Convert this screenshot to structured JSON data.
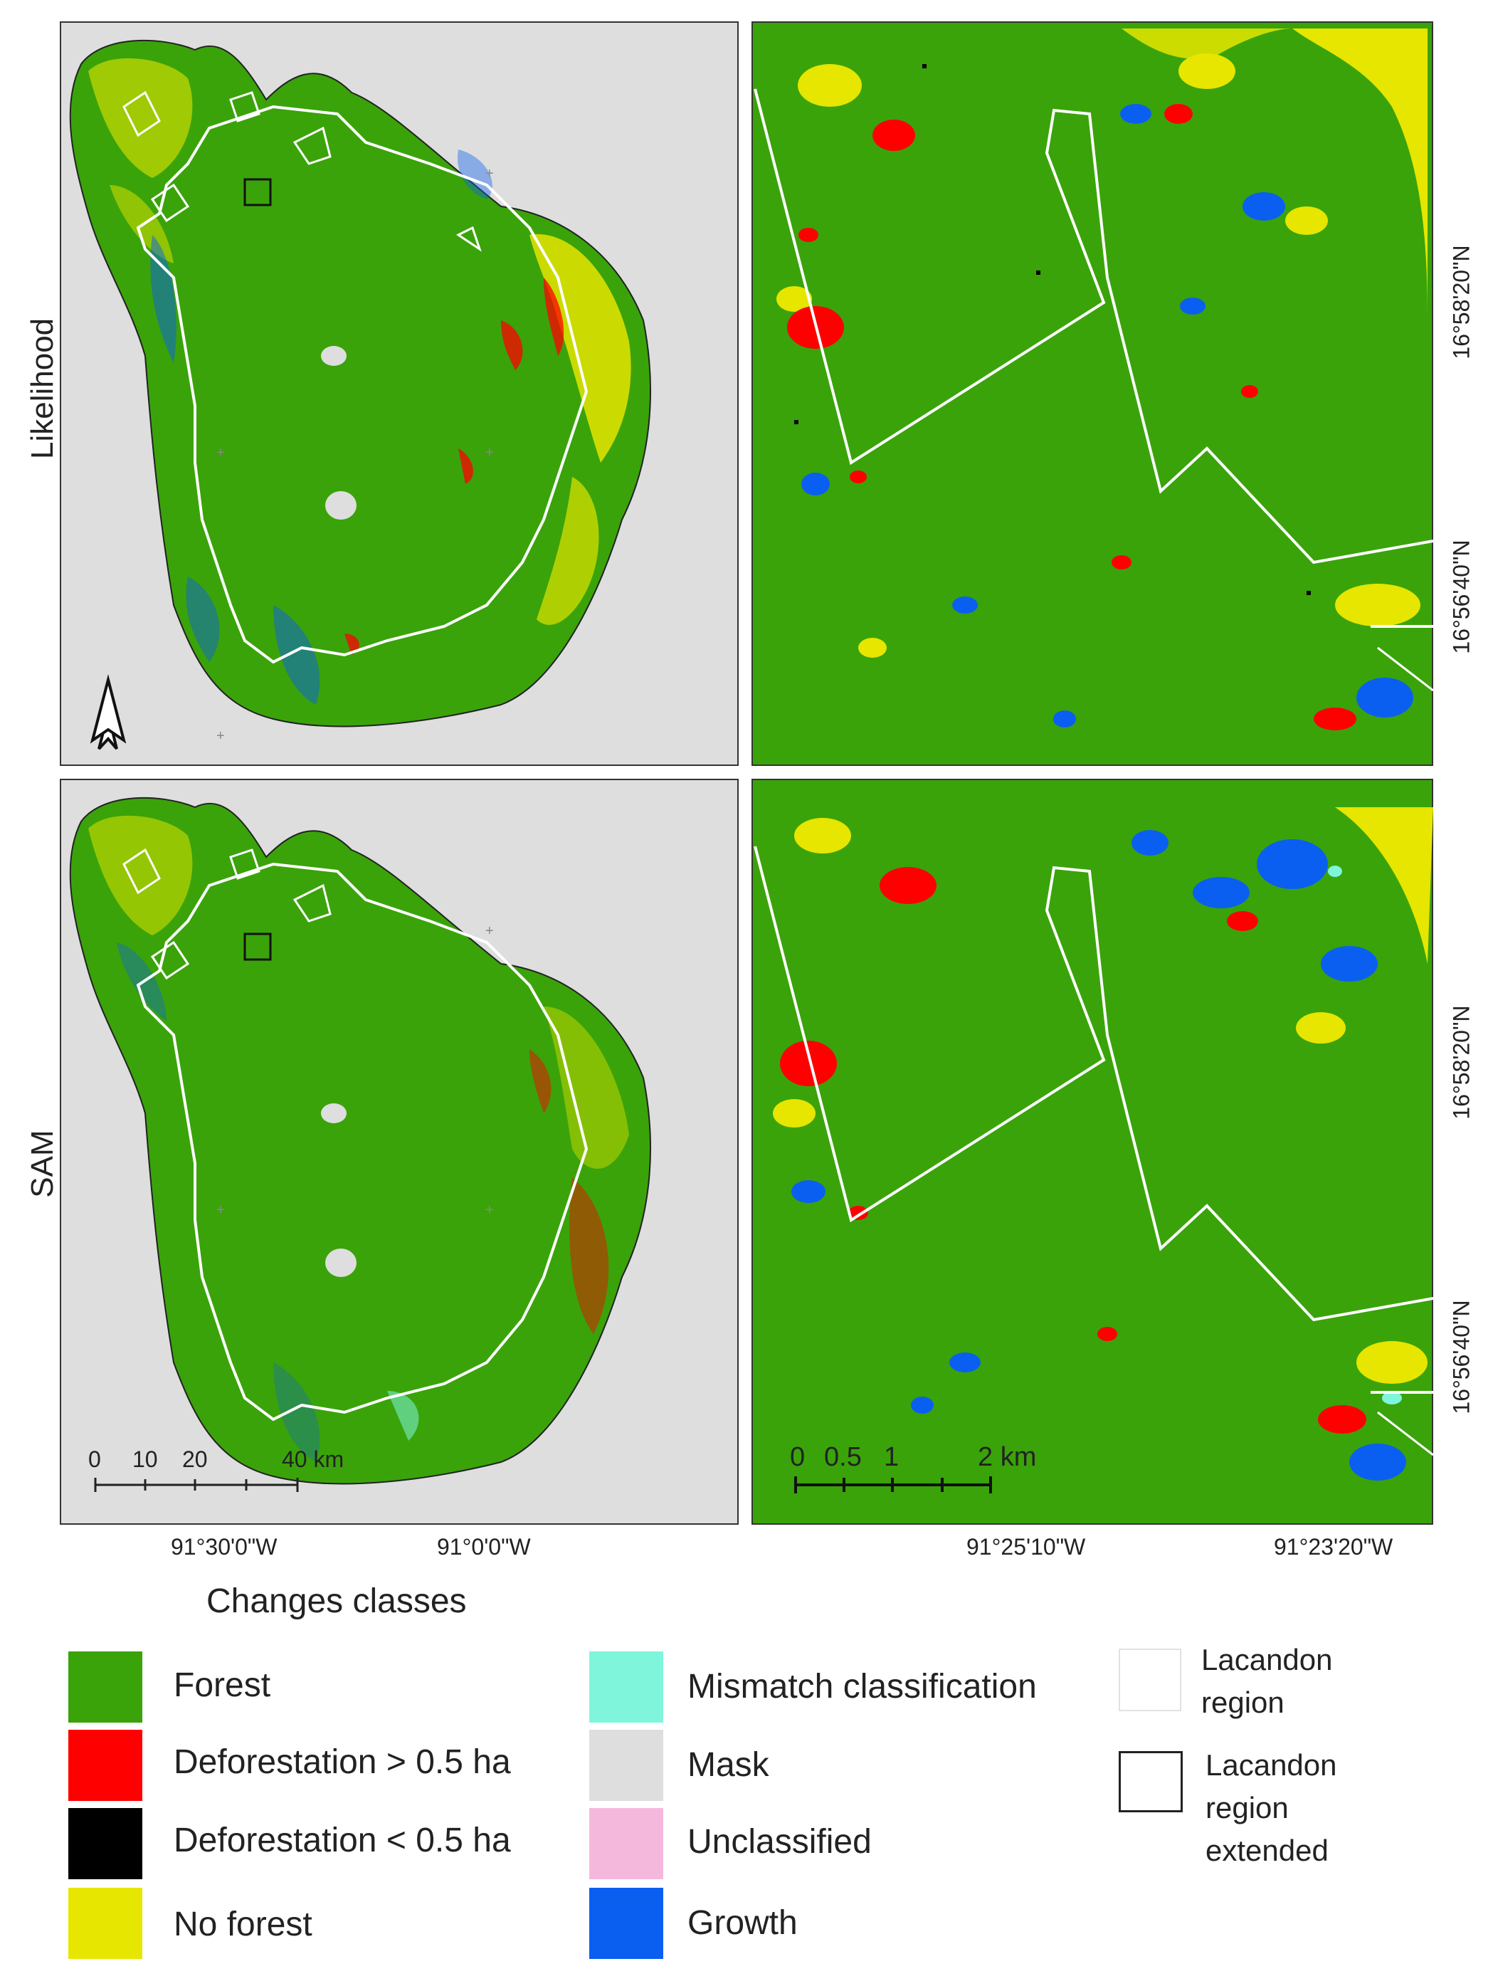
{
  "row_labels": [
    "Likelihood",
    "SAM"
  ],
  "left_axis": {
    "lon_ticks": [
      "91°30'0\"W",
      "91°0'0\"W"
    ],
    "scale_ticks": [
      "0",
      "10",
      "20",
      "40 km"
    ]
  },
  "right_axis": {
    "lon_ticks": [
      "91°25'10\"W",
      "91°23'20\"W"
    ],
    "lat_ticks": [
      "16°58'20\"N",
      "16°56'40\"N"
    ],
    "scale_ticks": [
      "0",
      "0.5",
      "1",
      "2 km"
    ]
  },
  "legend": {
    "title": "Changes classes",
    "classes": [
      {
        "label": "Forest",
        "color": "#3aa30a"
      },
      {
        "label": "Deforestation > 0.5 ha",
        "color": "#ff0000"
      },
      {
        "label": "Deforestation < 0.5 ha",
        "color": "#000000"
      },
      {
        "label": "No forest",
        "color": "#e6e600"
      },
      {
        "label": "Mismatch classification",
        "color": "#7ff5dc"
      },
      {
        "label": "Mask",
        "color": "#dedede"
      },
      {
        "label": "Unclassified",
        "color": "#f5b8dd"
      },
      {
        "label": "Growth",
        "color": "#0a5ff0"
      }
    ],
    "boundaries": [
      {
        "label": "Lacandon region",
        "style": "white outline"
      },
      {
        "label": "Lacandon region extended",
        "style": "black outline"
      }
    ]
  },
  "icons": {
    "north_arrow": "north-arrow-icon"
  }
}
